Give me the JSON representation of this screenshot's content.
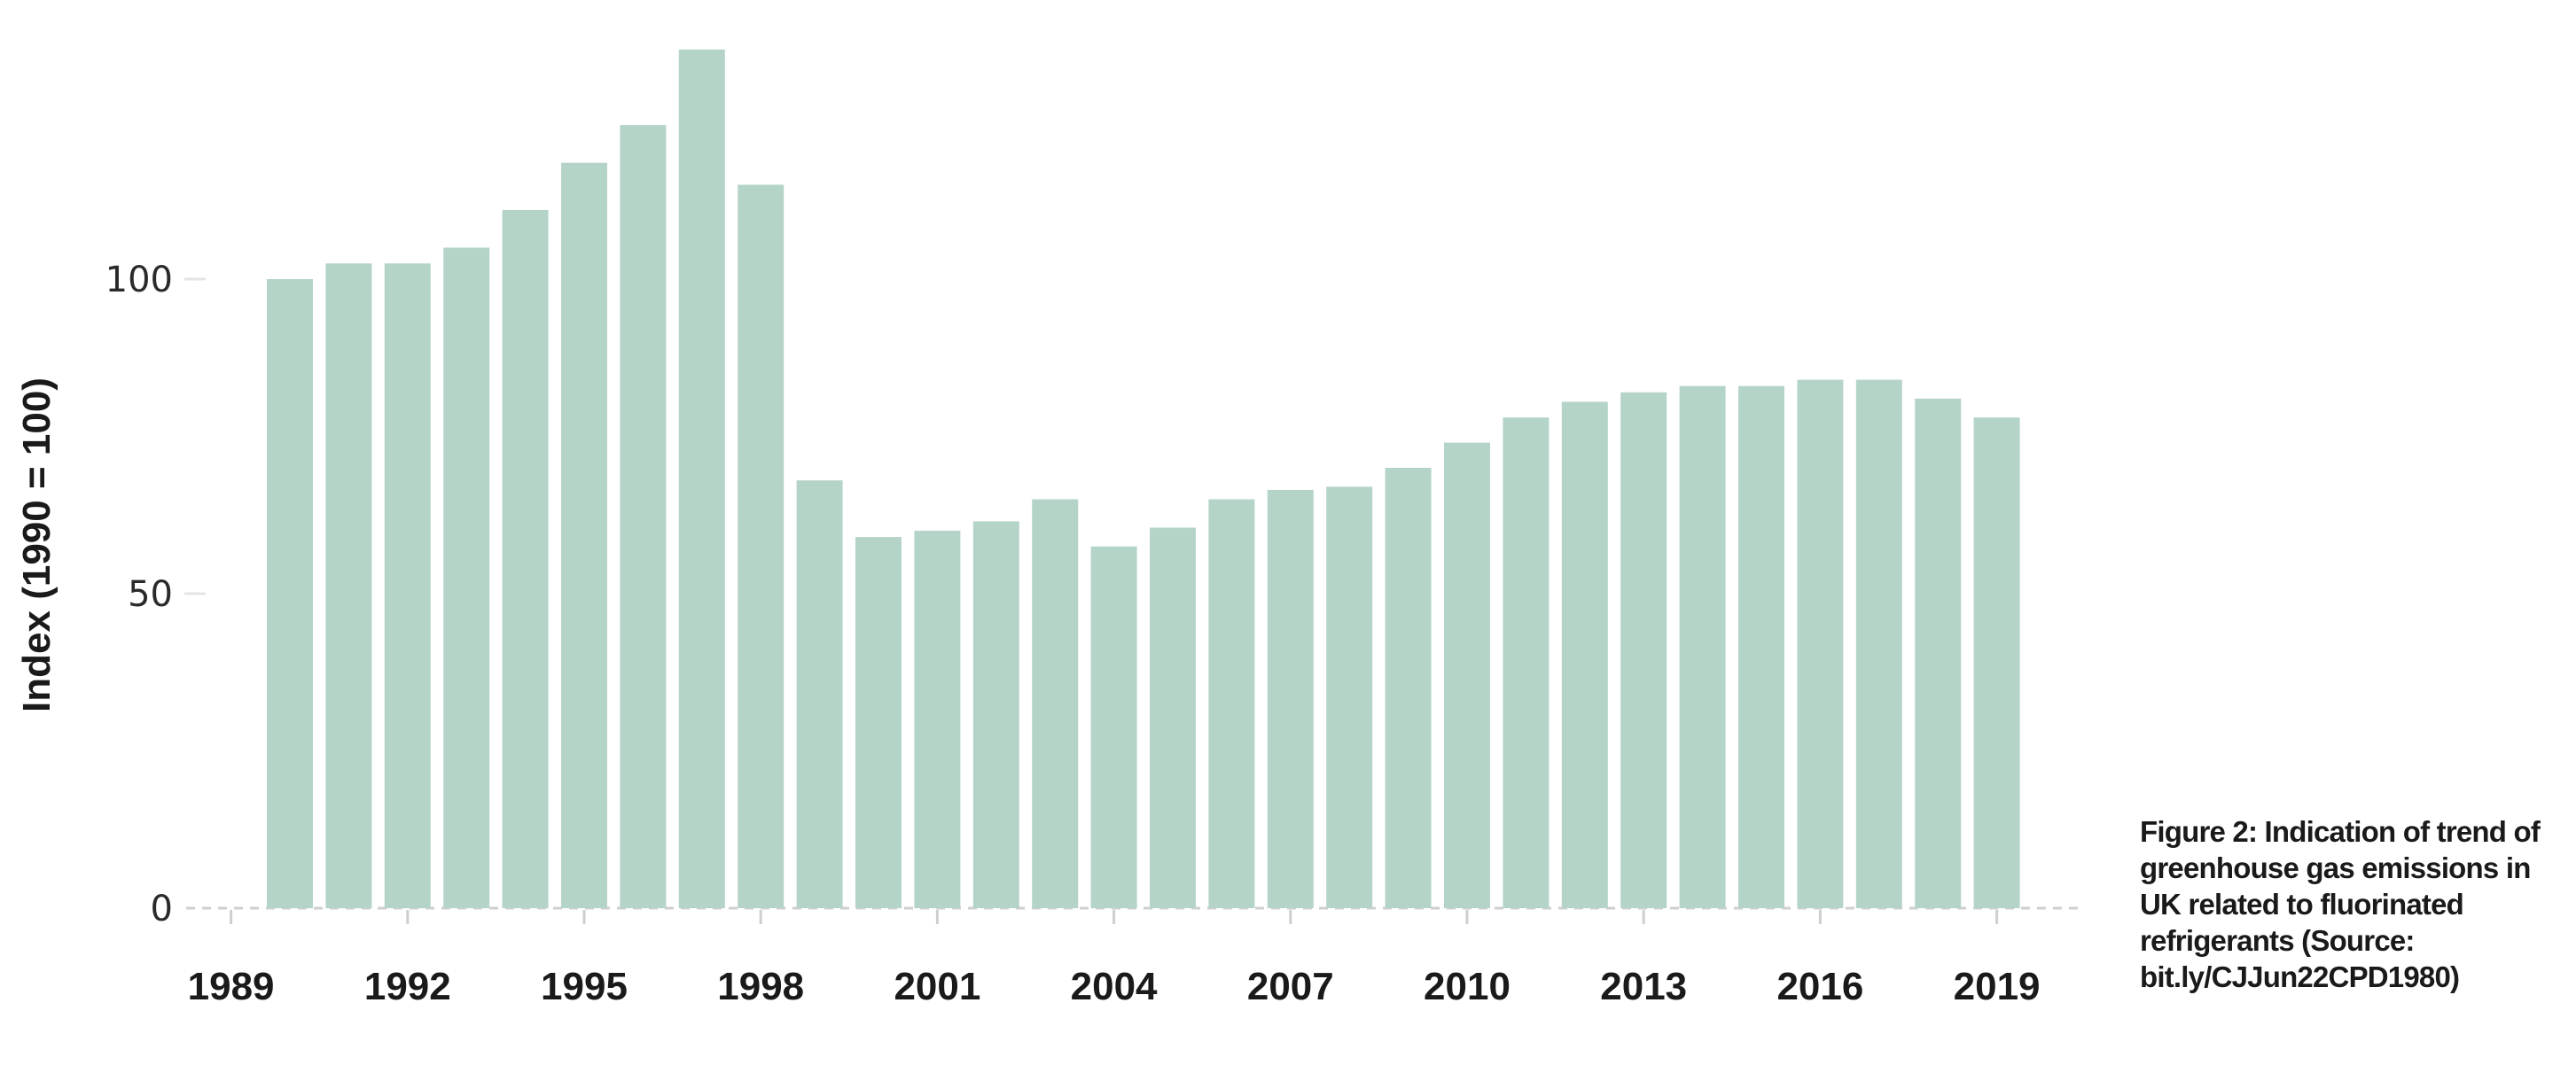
{
  "chart_data": {
    "type": "bar",
    "title": "",
    "ylabel": "Index (1990 = 100)",
    "xlabel": "",
    "ylim": [
      0,
      137
    ],
    "y_ticks": [
      0,
      50,
      100
    ],
    "x_tick_labels": [
      "1989",
      "1992",
      "1995",
      "1998",
      "2001",
      "2004",
      "2007",
      "2010",
      "2013",
      "2016",
      "2019"
    ],
    "grid": false,
    "bar_color": "#b5d4c8",
    "categories": [
      1990,
      1991,
      1992,
      1993,
      1994,
      1995,
      1996,
      1997,
      1998,
      1999,
      2000,
      2001,
      2002,
      2003,
      2004,
      2005,
      2006,
      2007,
      2008,
      2009,
      2010,
      2011,
      2012,
      2013,
      2014,
      2015,
      2016,
      2017,
      2018,
      2019
    ],
    "values": [
      100,
      102.5,
      102.5,
      105,
      111,
      118.5,
      124.5,
      136.5,
      115,
      68,
      59,
      60,
      61.5,
      65,
      57.5,
      60.5,
      65,
      66.5,
      67,
      70,
      74,
      78,
      80.5,
      82,
      83,
      83,
      84,
      84,
      81,
      78
    ]
  },
  "caption": "Figure 2: Indication of trend of greenhouse gas emissions in UK related to fluorinated refrigerants (Source: bit.ly/CJJun22CPD1980)"
}
